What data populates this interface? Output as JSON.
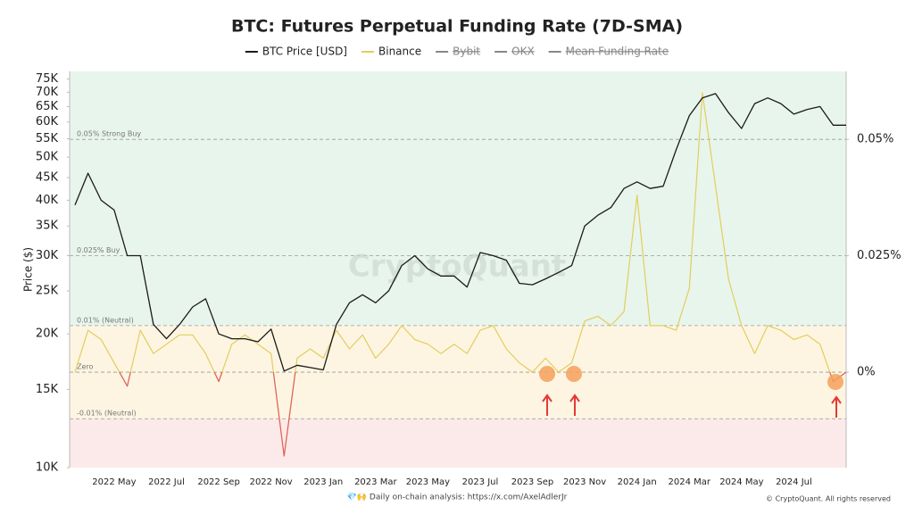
{
  "chart_data": {
    "type": "line",
    "title": "BTC: Futures Perpetual Funding Rate (7D-SMA)",
    "ylabel": "Price ($)",
    "watermark": "CryptoQuant",
    "footer_left": "💎🙌 Daily on-chain analysis: https://x.com/AxelAdlerJr",
    "footer_right": "© CryptoQuant. All rights reserved",
    "log_y": true,
    "ylim": [
      10000,
      78000
    ],
    "yticks": [
      {
        "value": 10000,
        "label": "10K"
      },
      {
        "value": 15000,
        "label": "15K"
      },
      {
        "value": 20000,
        "label": "20K"
      },
      {
        "value": 25000,
        "label": "25K"
      },
      {
        "value": 30000,
        "label": "30K"
      },
      {
        "value": 35000,
        "label": "35K"
      },
      {
        "value": 40000,
        "label": "40K"
      },
      {
        "value": 45000,
        "label": "45K"
      },
      {
        "value": 50000,
        "label": "50K"
      },
      {
        "value": 55000,
        "label": "55K"
      },
      {
        "value": 60000,
        "label": "60K"
      },
      {
        "value": 65000,
        "label": "65K"
      },
      {
        "value": 70000,
        "label": "70K"
      },
      {
        "value": 75000,
        "label": "75K"
      }
    ],
    "y2lim": [
      -0.0205,
      0.0646
    ],
    "y2ticks": [
      {
        "value": 0,
        "label": "0%"
      },
      {
        "value": 0.025,
        "label": "0.025%"
      },
      {
        "value": 0.05,
        "label": "0.05%"
      }
    ],
    "reference_lines": [
      {
        "value": 0.05,
        "label": "0.05% Strong Buy"
      },
      {
        "value": 0.025,
        "label": "0.025% Buy"
      },
      {
        "value": 0.01,
        "label": "0.01% (Neutral)"
      },
      {
        "value": 0,
        "label": "Zero"
      },
      {
        "value": -0.01,
        "label": "-0.01% (Neutral)"
      }
    ],
    "bands": [
      {
        "from": 0.01,
        "color": "#e8f5ec"
      },
      {
        "from": -0.01,
        "to": 0.01,
        "color": "#fdf5e2"
      },
      {
        "to": -0.01,
        "color": "#fce9e9"
      }
    ],
    "negative_color": "#e06060",
    "categories": [
      null,
      null,
      null,
      "2022 May",
      null,
      null,
      null,
      "2022 Jul",
      null,
      null,
      null,
      "2022 Sep",
      null,
      null,
      null,
      "2022 Nov",
      null,
      null,
      null,
      "2023 Jan",
      null,
      null,
      null,
      "2023 Mar",
      null,
      null,
      null,
      "2023 May",
      null,
      null,
      null,
      "2023 Jul",
      null,
      null,
      null,
      "2023 Sep",
      null,
      null,
      null,
      "2023 Nov",
      null,
      null,
      null,
      "2024 Jan",
      null,
      null,
      null,
      "2024 Mar",
      null,
      null,
      null,
      "2024 May",
      null,
      null,
      null,
      "2024 Jul",
      null,
      null,
      null,
      null
    ],
    "series": [
      {
        "name": "BTC Price [USD]",
        "color": "#1a1a1a",
        "values": [
          39000,
          46000,
          40000,
          38000,
          30000,
          30000,
          21000,
          19500,
          21000,
          23000,
          24000,
          20000,
          19500,
          19500,
          19200,
          20500,
          16500,
          17000,
          16800,
          16600,
          21000,
          23500,
          24500,
          23500,
          25000,
          28500,
          30000,
          28000,
          27000,
          27000,
          25500,
          30500,
          30000,
          29300,
          26000,
          25800,
          26600,
          27500,
          28500,
          35000,
          37000,
          38500,
          42500,
          44000,
          42500,
          43000,
          52000,
          62000,
          68000,
          69500,
          63000,
          58000,
          66000,
          68000,
          66000,
          62500,
          64000,
          65000,
          59000,
          59000
        ]
      },
      {
        "name": "Binance",
        "color": "#e3cd5c",
        "axis": "y2",
        "values": [
          0.0,
          0.009,
          0.007,
          0.002,
          -0.003,
          0.009,
          0.004,
          0.006,
          0.008,
          0.008,
          0.004,
          -0.002,
          0.006,
          0.008,
          0.006,
          0.004,
          -0.018,
          0.003,
          0.005,
          0.003,
          0.009,
          0.005,
          0.008,
          0.003,
          0.006,
          0.01,
          0.007,
          0.006,
          0.004,
          0.006,
          0.004,
          0.009,
          0.01,
          0.005,
          0.002,
          0.0,
          0.003,
          0.0,
          0.002,
          0.011,
          0.012,
          0.01,
          0.013,
          0.038,
          0.01,
          0.01,
          0.009,
          0.018,
          0.06,
          0.04,
          0.02,
          0.01,
          0.004,
          0.01,
          0.009,
          0.007,
          0.008,
          0.006,
          -0.002,
          0.0
        ]
      },
      {
        "name": "Bybit",
        "color": "#888888",
        "hidden": true
      },
      {
        "name": "OKX",
        "color": "#888888",
        "hidden": true
      },
      {
        "name": "Mean Funding Rate",
        "color": "#888888",
        "hidden": true
      }
    ]
  }
}
